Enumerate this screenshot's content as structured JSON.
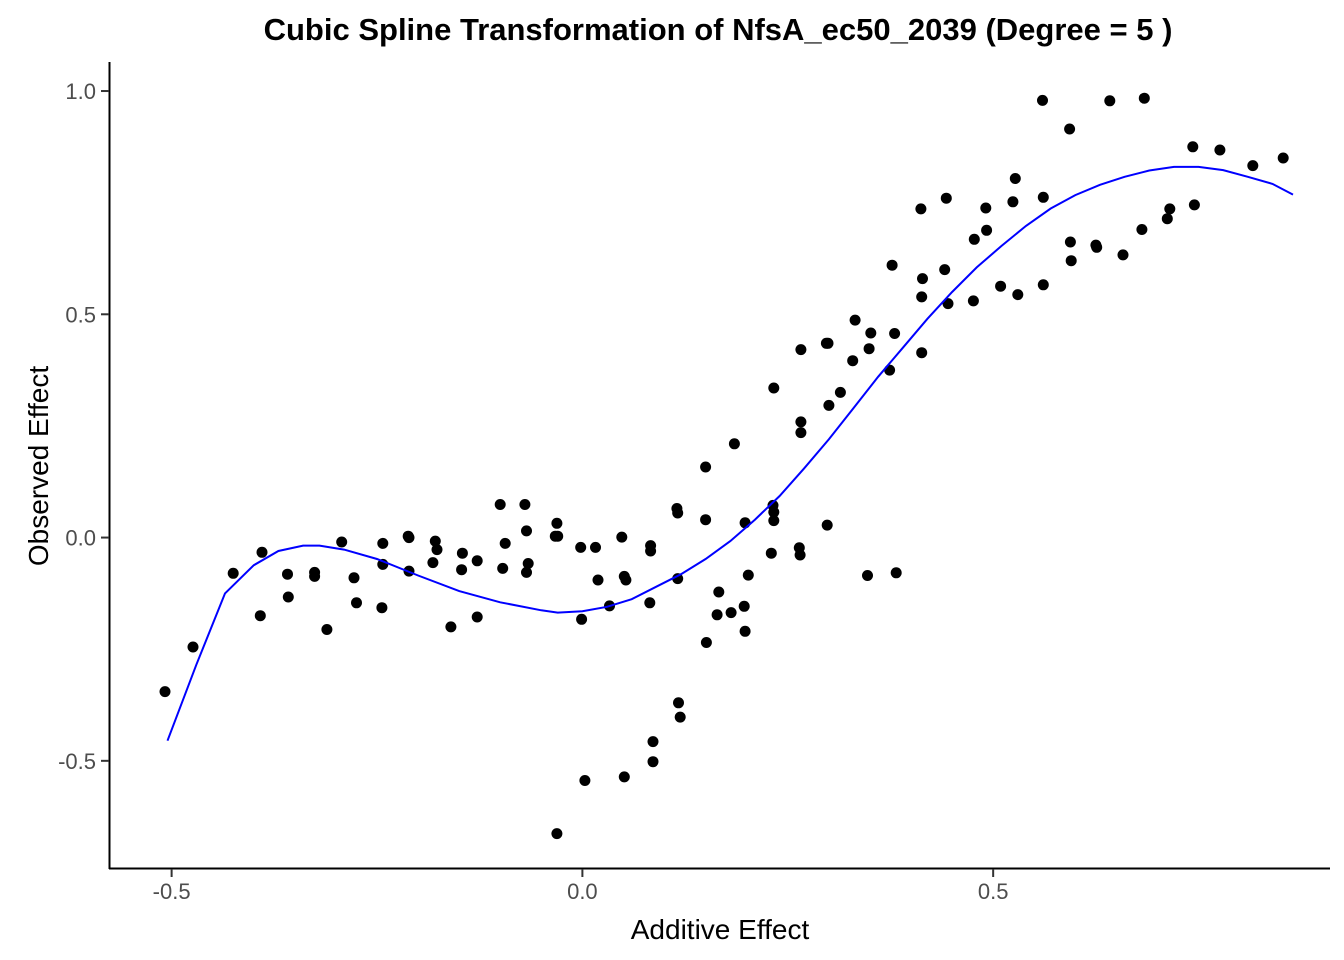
{
  "chart_data": {
    "type": "scatter",
    "title": "Cubic Spline Transformation of NfsA_ec50_2039 (Degree = 5 )",
    "xlabel": "Additive Effect",
    "ylabel": "Observed Effect",
    "xlim": [
      -0.575,
      0.91
    ],
    "ylim": [
      -0.74,
      1.065
    ],
    "xticks": [
      -0.5,
      0.0,
      0.5
    ],
    "xtick_labels": [
      "-0.5",
      "0.0",
      "0.5"
    ],
    "yticks": [
      -0.5,
      0.0,
      0.5,
      1.0
    ],
    "ytick_labels": [
      "-0.5",
      "0.0",
      "0.5",
      "1.0"
    ],
    "grid": false,
    "legend": "none",
    "colors": {
      "points": "#000000",
      "line": "#0000ff"
    },
    "series": [
      {
        "type": "scatter",
        "points": [
          [
            -0.508,
            -0.345
          ],
          [
            -0.474,
            -0.245
          ],
          [
            -0.425,
            -0.08
          ],
          [
            -0.392,
            -0.175
          ],
          [
            -0.39,
            -0.033
          ],
          [
            -0.359,
            -0.082
          ],
          [
            -0.358,
            -0.133
          ],
          [
            -0.326,
            -0.078
          ],
          [
            -0.326,
            -0.087
          ],
          [
            -0.311,
            -0.206
          ],
          [
            -0.293,
            -0.01
          ],
          [
            -0.278,
            -0.09
          ],
          [
            -0.275,
            -0.146
          ],
          [
            -0.244,
            -0.157
          ],
          [
            -0.243,
            -0.013
          ],
          [
            -0.243,
            -0.06
          ],
          [
            -0.212,
            0.003
          ],
          [
            -0.211,
            0.0
          ],
          [
            -0.211,
            -0.075
          ],
          [
            -0.182,
            -0.056
          ],
          [
            -0.179,
            -0.008
          ],
          [
            -0.177,
            -0.027
          ],
          [
            -0.16,
            -0.2
          ],
          [
            -0.147,
            -0.072
          ],
          [
            -0.146,
            -0.035
          ],
          [
            -0.128,
            -0.052
          ],
          [
            -0.128,
            -0.178
          ],
          [
            -0.1,
            0.074
          ],
          [
            -0.097,
            -0.069
          ],
          [
            -0.094,
            -0.013
          ],
          [
            -0.07,
            0.074
          ],
          [
            -0.068,
            0.015
          ],
          [
            -0.068,
            -0.078
          ],
          [
            -0.066,
            -0.058
          ],
          [
            -0.033,
            0.003
          ],
          [
            -0.031,
            0.032
          ],
          [
            -0.03,
            0.003
          ],
          [
            -0.031,
            -0.663
          ],
          [
            -0.002,
            -0.022
          ],
          [
            -0.001,
            -0.183
          ],
          [
            0.003,
            -0.544
          ],
          [
            0.016,
            -0.022
          ],
          [
            0.019,
            -0.095
          ],
          [
            0.033,
            -0.153
          ],
          [
            0.048,
            0.001
          ],
          [
            0.051,
            -0.087
          ],
          [
            0.053,
            -0.095
          ],
          [
            0.051,
            -0.536
          ],
          [
            0.083,
            -0.018
          ],
          [
            0.083,
            -0.03
          ],
          [
            0.082,
            -0.146
          ],
          [
            0.086,
            -0.457
          ],
          [
            0.086,
            -0.502
          ],
          [
            0.115,
            0.065
          ],
          [
            0.116,
            0.055
          ],
          [
            0.116,
            -0.092
          ],
          [
            0.117,
            -0.37
          ],
          [
            0.119,
            -0.402
          ],
          [
            0.15,
            0.158
          ],
          [
            0.15,
            0.04
          ],
          [
            0.151,
            -0.235
          ],
          [
            0.164,
            -0.173
          ],
          [
            0.166,
            -0.122
          ],
          [
            0.181,
            -0.168
          ],
          [
            0.185,
            0.21
          ],
          [
            0.198,
            0.033
          ],
          [
            0.197,
            -0.154
          ],
          [
            0.198,
            -0.21
          ],
          [
            0.202,
            -0.084
          ],
          [
            0.23,
            -0.035
          ],
          [
            0.232,
            0.072
          ],
          [
            0.233,
            0.057
          ],
          [
            0.233,
            0.038
          ],
          [
            0.233,
            0.335
          ],
          [
            0.264,
            -0.023
          ],
          [
            0.265,
            -0.039
          ],
          [
            0.266,
            0.235
          ],
          [
            0.266,
            0.259
          ],
          [
            0.266,
            0.421
          ],
          [
            0.297,
            0.435
          ],
          [
            0.299,
            0.435
          ],
          [
            0.298,
            0.028
          ],
          [
            0.3,
            0.296
          ],
          [
            0.314,
            0.325
          ],
          [
            0.329,
            0.396
          ],
          [
            0.332,
            0.487
          ],
          [
            0.347,
            -0.085
          ],
          [
            0.349,
            0.423
          ],
          [
            0.351,
            0.458
          ],
          [
            0.374,
            0.375
          ],
          [
            0.377,
            0.61
          ],
          [
            0.38,
            0.457
          ],
          [
            0.382,
            -0.079
          ],
          [
            0.412,
            0.736
          ],
          [
            0.413,
            0.539
          ],
          [
            0.413,
            0.414
          ],
          [
            0.414,
            0.58
          ],
          [
            0.441,
            0.6
          ],
          [
            0.443,
            0.76
          ],
          [
            0.445,
            0.524
          ],
          [
            0.476,
            0.53
          ],
          [
            0.477,
            0.668
          ],
          [
            0.491,
            0.738
          ],
          [
            0.492,
            0.688
          ],
          [
            0.509,
            0.563
          ],
          [
            0.524,
            0.752
          ],
          [
            0.527,
            0.804
          ],
          [
            0.53,
            0.544
          ],
          [
            0.56,
            0.979
          ],
          [
            0.561,
            0.762
          ],
          [
            0.561,
            0.566
          ],
          [
            0.593,
            0.915
          ],
          [
            0.594,
            0.662
          ],
          [
            0.595,
            0.62
          ],
          [
            0.625,
            0.655
          ],
          [
            0.626,
            0.65
          ],
          [
            0.642,
            0.978
          ],
          [
            0.658,
            0.633
          ],
          [
            0.681,
            0.69
          ],
          [
            0.684,
            0.984
          ],
          [
            0.712,
            0.714
          ],
          [
            0.715,
            0.736
          ],
          [
            0.743,
            0.875
          ],
          [
            0.745,
            0.745
          ],
          [
            0.776,
            0.868
          ],
          [
            0.816,
            0.833
          ],
          [
            0.853,
            0.85
          ]
        ]
      },
      {
        "type": "line",
        "points": [
          [
            -0.505,
            -0.455
          ],
          [
            -0.47,
            -0.285
          ],
          [
            -0.435,
            -0.125
          ],
          [
            -0.4,
            -0.062
          ],
          [
            -0.37,
            -0.03
          ],
          [
            -0.34,
            -0.018
          ],
          [
            -0.32,
            -0.018
          ],
          [
            -0.29,
            -0.027
          ],
          [
            -0.25,
            -0.048
          ],
          [
            -0.2,
            -0.085
          ],
          [
            -0.15,
            -0.12
          ],
          [
            -0.1,
            -0.145
          ],
          [
            -0.05,
            -0.163
          ],
          [
            -0.03,
            -0.168
          ],
          [
            0.0,
            -0.165
          ],
          [
            0.03,
            -0.155
          ],
          [
            0.06,
            -0.138
          ],
          [
            0.09,
            -0.11
          ],
          [
            0.12,
            -0.082
          ],
          [
            0.15,
            -0.048
          ],
          [
            0.18,
            -0.008
          ],
          [
            0.21,
            0.04
          ],
          [
            0.24,
            0.093
          ],
          [
            0.27,
            0.155
          ],
          [
            0.3,
            0.22
          ],
          [
            0.33,
            0.29
          ],
          [
            0.36,
            0.36
          ],
          [
            0.39,
            0.425
          ],
          [
            0.42,
            0.49
          ],
          [
            0.45,
            0.55
          ],
          [
            0.48,
            0.605
          ],
          [
            0.51,
            0.653
          ],
          [
            0.54,
            0.698
          ],
          [
            0.57,
            0.737
          ],
          [
            0.6,
            0.767
          ],
          [
            0.63,
            0.79
          ],
          [
            0.66,
            0.808
          ],
          [
            0.69,
            0.822
          ],
          [
            0.72,
            0.83
          ],
          [
            0.75,
            0.83
          ],
          [
            0.78,
            0.823
          ],
          [
            0.81,
            0.808
          ],
          [
            0.84,
            0.792
          ],
          [
            0.865,
            0.768
          ]
        ]
      }
    ]
  }
}
